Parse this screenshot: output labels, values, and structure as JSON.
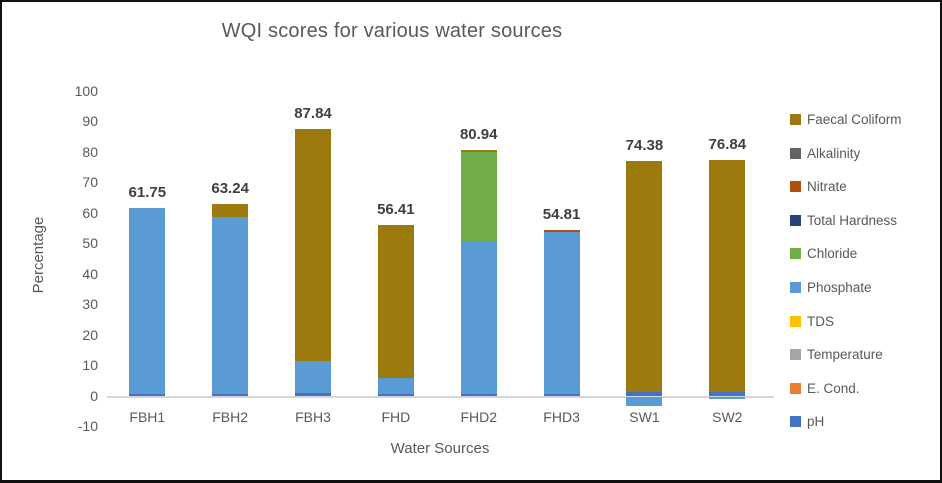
{
  "window": {
    "background": "#ffffff",
    "border_color": "#111111"
  },
  "chart_data": {
    "type": "bar",
    "variant": "stacked-column",
    "title": "WQI scores for various water sources",
    "xlabel": "Water Sources",
    "ylabel": "Percentage",
    "ylim": [
      -10,
      100
    ],
    "yticks": [
      100,
      90,
      80,
      70,
      60,
      50,
      40,
      30,
      20,
      10,
      0,
      -10
    ],
    "gridlines": false,
    "axis_line_color": "#d6d6d6",
    "categories": [
      "FBH1",
      "FBH2",
      "FBH3",
      "FHD",
      "FHD2",
      "FHD3",
      "SW1",
      "SW2"
    ],
    "total_labels": [
      "61.75",
      "63.24",
      "87.84",
      "56.41",
      "80.94",
      "54.81",
      "74.38",
      "76.84"
    ],
    "series": [
      {
        "name": "pH",
        "color": "#4472C4",
        "values": [
          0.8,
          0.8,
          1.0,
          0.9,
          0.9,
          0.8,
          1.5,
          1.5
        ]
      },
      {
        "name": "E. Cond.",
        "color": "#ED7D31",
        "values": [
          0,
          0,
          0,
          0,
          0,
          0,
          0,
          0
        ]
      },
      {
        "name": "Temperature",
        "color": "#A5A5A5",
        "values": [
          0,
          0,
          0,
          0,
          0,
          0,
          0,
          0
        ]
      },
      {
        "name": "TDS",
        "color": "#FFC000",
        "values": [
          0,
          0,
          0,
          0,
          0,
          0,
          0,
          0
        ]
      },
      {
        "name": "Phosphate",
        "color": "#5B9BD5",
        "values": [
          60.95,
          58.24,
          10.8,
          5.1,
          50.0,
          53.2,
          -3.0,
          -0.8
        ]
      },
      {
        "name": "Chloride",
        "color": "#70AD47",
        "values": [
          0,
          0,
          0,
          0,
          29.4,
          0,
          0,
          0
        ]
      },
      {
        "name": "Total Hardness",
        "color": "#264478",
        "values": [
          0,
          0,
          0,
          0,
          0,
          0,
          0,
          0
        ]
      },
      {
        "name": "Alkalinity",
        "color": "#636363",
        "values": [
          0,
          0,
          0,
          0,
          0,
          0,
          0,
          0
        ]
      },
      {
        "name": "Nitrate",
        "color": "#B04F10",
        "values": [
          0,
          0,
          0,
          0,
          0,
          0.81,
          0,
          0
        ]
      },
      {
        "name": "Faecal Coliform",
        "color": "#9C7A0E",
        "values": [
          0,
          4.2,
          76.04,
          50.41,
          0.64,
          0,
          75.88,
          76.14
        ]
      }
    ],
    "legend": {
      "position": "right",
      "items_top_to_bottom": [
        "Faecal Coliform",
        "Alkalinity",
        "Nitrate",
        "Total Hardness",
        "Chloride",
        "Phosphate",
        "TDS",
        "Temperature",
        "E. Cond.",
        "pH"
      ]
    },
    "text_colors": {
      "title": "#595959",
      "axis_labels": "#595959",
      "data_labels": "#3f3f3f",
      "legend_labels": "#595959"
    }
  }
}
